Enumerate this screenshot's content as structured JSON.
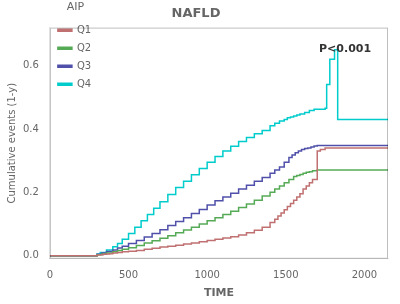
{
  "chart_data": {
    "type": "line",
    "title": "NAFLD",
    "x_label": "TIME",
    "y_label": "Cumulative events (1-y)",
    "annotation": "P<0.001",
    "legend_title": "AIP",
    "legend": "upper left",
    "grid": false,
    "line_style": "steps-post",
    "xlim": [
      0,
      2150
    ],
    "ylim": [
      -0.01,
      0.72
    ],
    "xticks": [
      0,
      500,
      1000,
      1500,
      2000
    ],
    "yticks": [
      {
        "value": 0.0,
        "label": "0.0"
      },
      0.2,
      0.4,
      0.6
    ],
    "series": [
      {
        "name": "Q1",
        "color": "#c07070",
        "x": [
          0,
          280,
          300,
          320,
          340,
          360,
          380,
          400,
          430,
          460,
          500,
          550,
          600,
          650,
          700,
          750,
          800,
          850,
          900,
          950,
          1000,
          1050,
          1100,
          1150,
          1200,
          1250,
          1300,
          1350,
          1400,
          1430,
          1450,
          1470,
          1490,
          1510,
          1530,
          1550,
          1570,
          1590,
          1610,
          1630,
          1650,
          1670,
          1700,
          1720,
          1750,
          1800,
          2150
        ],
        "values": [
          0.0,
          0.0,
          0.002,
          0.003,
          0.004,
          0.005,
          0.006,
          0.008,
          0.01,
          0.012,
          0.014,
          0.016,
          0.02,
          0.023,
          0.027,
          0.03,
          0.033,
          0.037,
          0.04,
          0.044,
          0.048,
          0.052,
          0.056,
          0.06,
          0.065,
          0.072,
          0.08,
          0.09,
          0.105,
          0.115,
          0.125,
          0.135,
          0.145,
          0.155,
          0.165,
          0.175,
          0.185,
          0.195,
          0.21,
          0.22,
          0.23,
          0.24,
          0.33,
          0.335,
          0.34,
          0.34,
          0.34
        ]
      },
      {
        "name": "Q2",
        "color": "#55aa55",
        "x": [
          0,
          280,
          300,
          330,
          360,
          400,
          430,
          460,
          500,
          550,
          600,
          650,
          700,
          750,
          800,
          850,
          900,
          950,
          1000,
          1050,
          1100,
          1150,
          1200,
          1250,
          1300,
          1350,
          1400,
          1430,
          1460,
          1490,
          1520,
          1550,
          1570,
          1590,
          1610,
          1630,
          1650,
          1670,
          1700,
          2150
        ],
        "values": [
          0.0,
          0.0,
          0.003,
          0.005,
          0.008,
          0.012,
          0.016,
          0.02,
          0.025,
          0.032,
          0.04,
          0.047,
          0.055,
          0.063,
          0.072,
          0.081,
          0.09,
          0.1,
          0.11,
          0.12,
          0.13,
          0.14,
          0.152,
          0.163,
          0.175,
          0.188,
          0.2,
          0.21,
          0.22,
          0.23,
          0.24,
          0.25,
          0.253,
          0.256,
          0.26,
          0.263,
          0.265,
          0.268,
          0.27,
          0.27
        ]
      },
      {
        "name": "Q3",
        "color": "#5050aa",
        "x": [
          0,
          280,
          300,
          330,
          360,
          400,
          430,
          460,
          500,
          550,
          600,
          650,
          700,
          750,
          800,
          850,
          900,
          950,
          1000,
          1050,
          1100,
          1150,
          1200,
          1250,
          1300,
          1350,
          1400,
          1430,
          1460,
          1490,
          1520,
          1540,
          1560,
          1580,
          1600,
          1620,
          1640,
          1660,
          1680,
          1700,
          2150
        ],
        "values": [
          0.0,
          0.0,
          0.004,
          0.008,
          0.013,
          0.018,
          0.024,
          0.03,
          0.038,
          0.048,
          0.059,
          0.07,
          0.082,
          0.095,
          0.108,
          0.12,
          0.133,
          0.146,
          0.16,
          0.173,
          0.185,
          0.197,
          0.21,
          0.222,
          0.235,
          0.247,
          0.26,
          0.27,
          0.28,
          0.295,
          0.31,
          0.318,
          0.325,
          0.33,
          0.335,
          0.338,
          0.34,
          0.343,
          0.346,
          0.348,
          0.348
        ]
      },
      {
        "name": "Q4",
        "color": "#00cccc",
        "x": [
          0,
          280,
          300,
          320,
          360,
          400,
          430,
          460,
          500,
          540,
          580,
          620,
          660,
          700,
          750,
          800,
          850,
          900,
          950,
          1000,
          1050,
          1100,
          1150,
          1200,
          1250,
          1300,
          1350,
          1400,
          1430,
          1460,
          1490,
          1510,
          1530,
          1550,
          1570,
          1590,
          1620,
          1650,
          1680,
          1750,
          1760,
          1780,
          1810,
          1830,
          2150
        ],
        "values": [
          0.0,
          0.0,
          0.005,
          0.01,
          0.018,
          0.028,
          0.038,
          0.052,
          0.07,
          0.09,
          0.11,
          0.13,
          0.15,
          0.17,
          0.193,
          0.215,
          0.235,
          0.255,
          0.275,
          0.295,
          0.313,
          0.33,
          0.345,
          0.36,
          0.373,
          0.385,
          0.395,
          0.41,
          0.418,
          0.425,
          0.43,
          0.435,
          0.438,
          0.441,
          0.444,
          0.447,
          0.452,
          0.458,
          0.462,
          0.465,
          0.54,
          0.62,
          0.65,
          0.43,
          0.43
        ]
      }
    ]
  }
}
